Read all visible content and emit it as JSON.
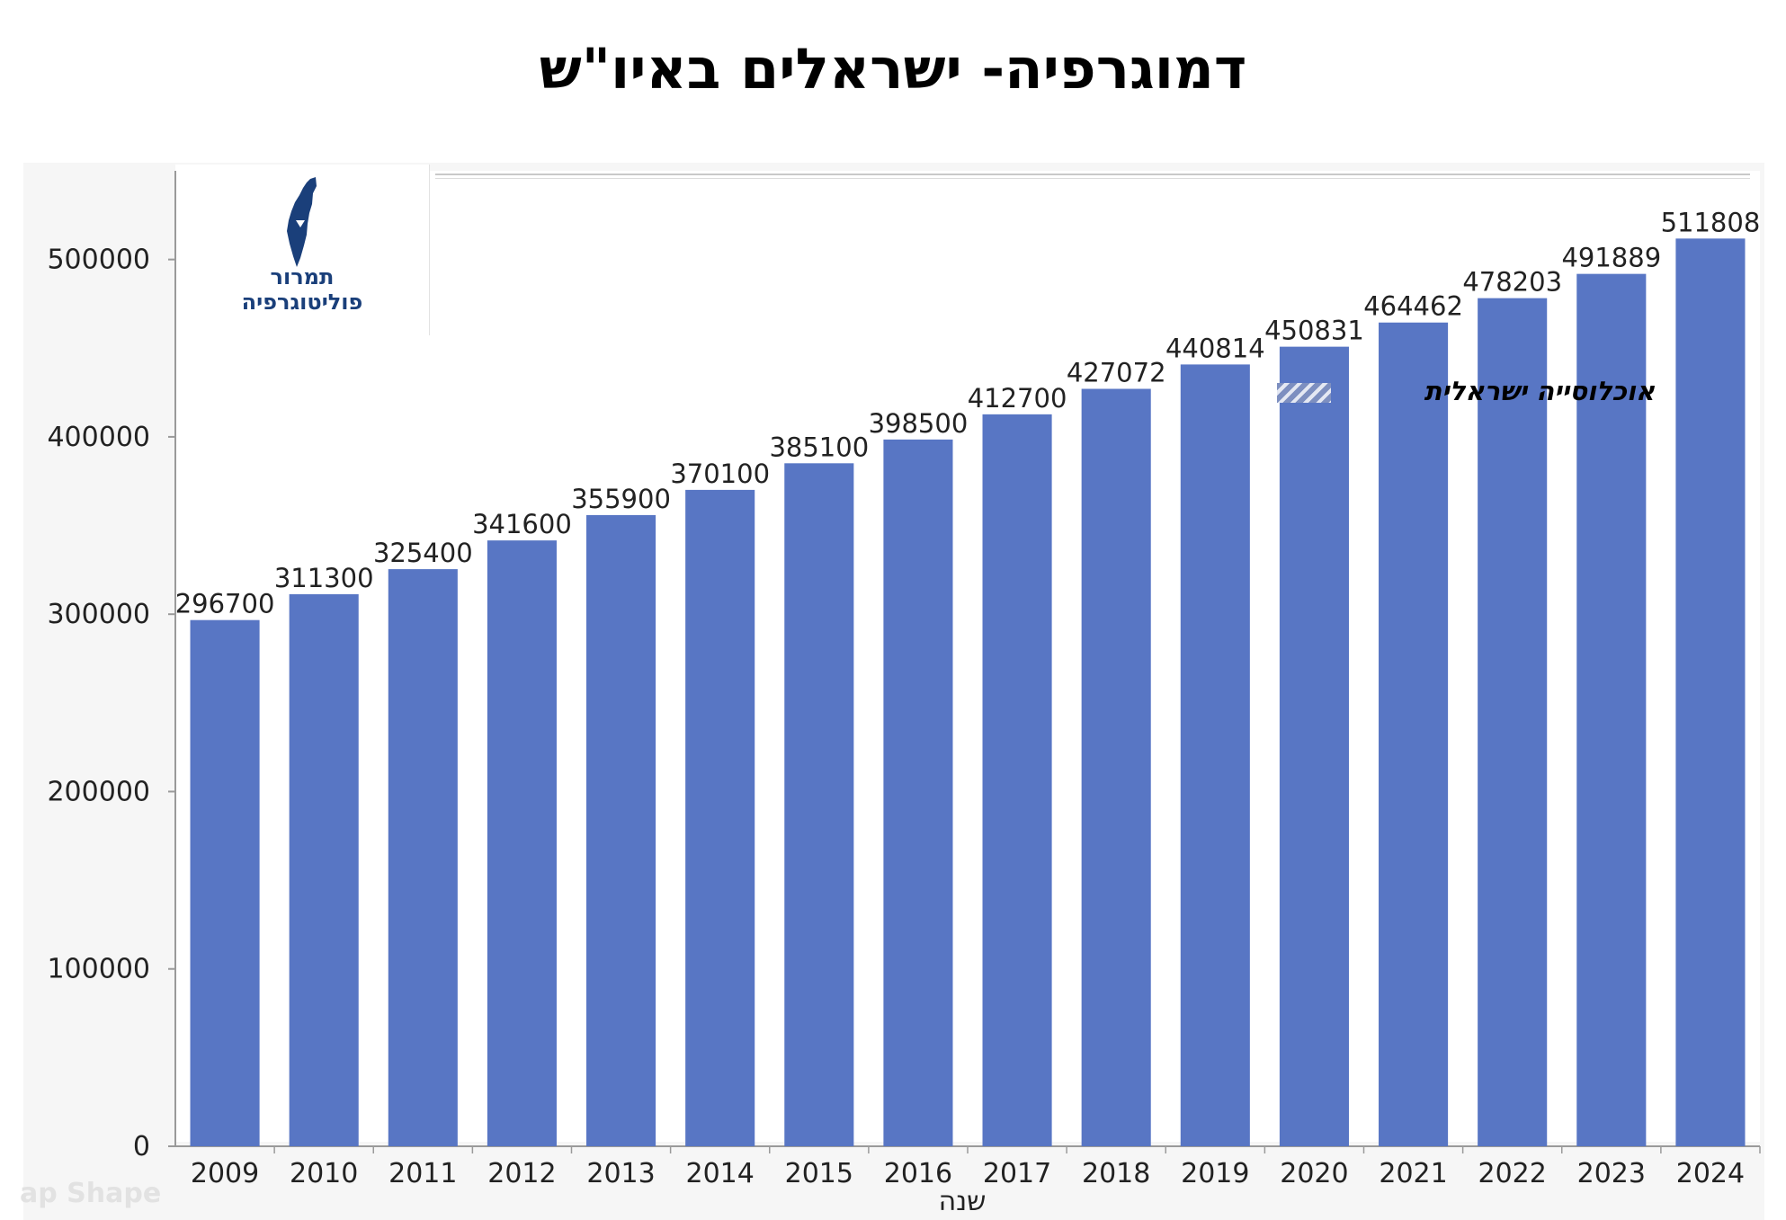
{
  "title": "דמוגרפיה- ישראלים באיו\"ש",
  "logo": {
    "line1": "תמרור",
    "line2": "פוליטוגרפיה",
    "icon": "israel-map-icon"
  },
  "watermark_text": "ap Shape",
  "colors": {
    "bar": "#5876c4",
    "logo": "#1a3f7a",
    "axis": "#9a9a9a"
  },
  "chart_data": {
    "type": "bar",
    "title": "",
    "xlabel": "שנה",
    "ylabel": "",
    "categories": [
      "2009",
      "2010",
      "2011",
      "2012",
      "2013",
      "2014",
      "2015",
      "2016",
      "2017",
      "2018",
      "2019",
      "2020",
      "2021",
      "2022",
      "2023",
      "2024"
    ],
    "values": [
      296700,
      311300,
      325400,
      341600,
      355900,
      370100,
      385100,
      398500,
      412700,
      427072,
      440814,
      450831,
      464462,
      478203,
      491889,
      511808
    ],
    "data_labels": [
      "296700",
      "311300",
      "325400",
      "341600",
      "355900",
      "370100",
      "385100",
      "398500",
      "412700",
      "427072",
      "440814",
      "450831",
      "464462",
      "478203",
      "491889",
      "511808"
    ],
    "yticks": [
      "0",
      "100000",
      "200000",
      "300000",
      "400000",
      "500000"
    ],
    "ylim": [
      0,
      550000
    ],
    "grid": false,
    "legend": {
      "label": "אוכלוסייה ישראלית",
      "placement": "top-right"
    }
  }
}
